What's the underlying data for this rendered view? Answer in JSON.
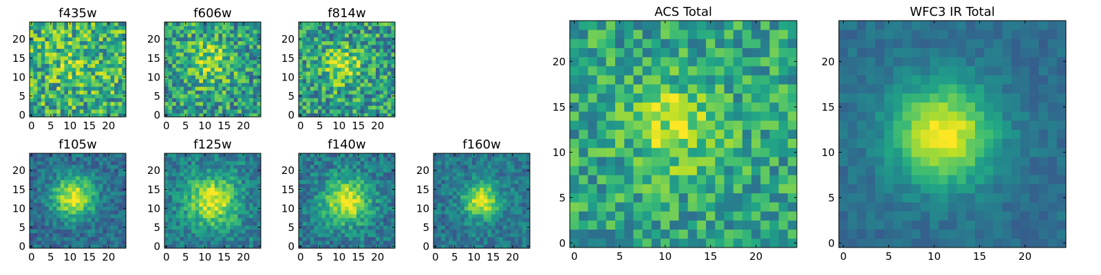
{
  "colormap": "viridis",
  "colors": {
    "viridis_low": "#440154",
    "viridis_mid": "#21918c",
    "viridis_high": "#fde725",
    "axis": "#000000",
    "background": "#ffffff"
  },
  "chart_data": [
    {
      "type": "heatmap",
      "title": "f435w",
      "shape": [
        25,
        25
      ],
      "xlim": [
        0,
        24
      ],
      "ylim": [
        0,
        24
      ],
      "xticks": [
        0,
        5,
        10,
        15,
        20
      ],
      "yticks": [
        0,
        5,
        10,
        15,
        20
      ],
      "peak": [
        11,
        14
      ],
      "spread": 7,
      "bg": 0.62,
      "amp": 0.12,
      "noise": 0.3,
      "seed": 11
    },
    {
      "type": "heatmap",
      "title": "f606w",
      "shape": [
        25,
        25
      ],
      "xlim": [
        0,
        24
      ],
      "ylim": [
        0,
        24
      ],
      "xticks": [
        0,
        5,
        10,
        15,
        20
      ],
      "yticks": [
        0,
        5,
        10,
        15,
        20
      ],
      "peak": [
        11,
        14
      ],
      "spread": 6,
      "bg": 0.55,
      "amp": 0.3,
      "noise": 0.28,
      "seed": 23
    },
    {
      "type": "heatmap",
      "title": "f814w",
      "shape": [
        25,
        25
      ],
      "xlim": [
        0,
        24
      ],
      "ylim": [
        0,
        24
      ],
      "xticks": [
        0,
        5,
        10,
        15,
        20
      ],
      "yticks": [
        0,
        5,
        10,
        15,
        20
      ],
      "peak": [
        11,
        13
      ],
      "spread": 5,
      "bg": 0.55,
      "amp": 0.32,
      "noise": 0.28,
      "seed": 37
    },
    {
      "type": "heatmap",
      "title": "f105w",
      "shape": [
        25,
        25
      ],
      "xlim": [
        0,
        24
      ],
      "ylim": [
        0,
        24
      ],
      "xticks": [
        0,
        5,
        10,
        15,
        20
      ],
      "yticks": [
        0,
        5,
        10,
        15,
        20
      ],
      "peak": [
        11,
        13
      ],
      "spread": 5.5,
      "bg": 0.35,
      "amp": 0.62,
      "noise": 0.14,
      "seed": 41
    },
    {
      "type": "heatmap",
      "title": "f125w",
      "shape": [
        25,
        25
      ],
      "xlim": [
        0,
        24
      ],
      "ylim": [
        0,
        24
      ],
      "xticks": [
        0,
        5,
        10,
        15,
        20
      ],
      "yticks": [
        0,
        5,
        10,
        15,
        20
      ],
      "peak": [
        12,
        12
      ],
      "spread": 6.5,
      "bg": 0.42,
      "amp": 0.55,
      "noise": 0.16,
      "seed": 53
    },
    {
      "type": "heatmap",
      "title": "f140w",
      "shape": [
        25,
        25
      ],
      "xlim": [
        0,
        24
      ],
      "ylim": [
        0,
        24
      ],
      "xticks": [
        0,
        5,
        10,
        15,
        20
      ],
      "yticks": [
        0,
        5,
        10,
        15,
        20
      ],
      "peak": [
        12,
        12
      ],
      "spread": 6,
      "bg": 0.4,
      "amp": 0.58,
      "noise": 0.16,
      "seed": 67
    },
    {
      "type": "heatmap",
      "title": "f160w",
      "shape": [
        25,
        25
      ],
      "xlim": [
        0,
        24
      ],
      "ylim": [
        0,
        24
      ],
      "xticks": [
        0,
        5,
        10,
        15,
        20
      ],
      "yticks": [
        0,
        5,
        10,
        15,
        20
      ],
      "peak": [
        12,
        12
      ],
      "spread": 4.5,
      "bg": 0.4,
      "amp": 0.58,
      "noise": 0.14,
      "seed": 79
    },
    {
      "type": "heatmap",
      "title": "ACS Total",
      "shape": [
        25,
        25
      ],
      "xlim": [
        0,
        24
      ],
      "ylim": [
        0,
        24
      ],
      "xticks": [
        0,
        5,
        10,
        15,
        20
      ],
      "yticks": [
        0,
        5,
        10,
        15,
        20
      ],
      "peak": [
        11,
        13
      ],
      "spread": 5,
      "bg": 0.58,
      "amp": 0.3,
      "noise": 0.22,
      "seed": 97
    },
    {
      "type": "heatmap",
      "title": "WFC3 IR Total",
      "shape": [
        25,
        25
      ],
      "xlim": [
        0,
        24
      ],
      "ylim": [
        0,
        24
      ],
      "xticks": [
        0,
        5,
        10,
        15,
        20
      ],
      "yticks": [
        0,
        5,
        10,
        15,
        20
      ],
      "peak": [
        11,
        12
      ],
      "spread": 5.5,
      "bg": 0.36,
      "amp": 0.64,
      "noise": 0.07,
      "seed": 131
    }
  ]
}
